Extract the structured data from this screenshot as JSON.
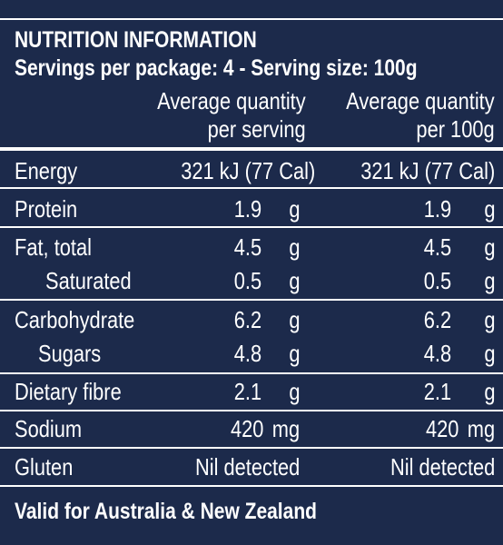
{
  "header": {
    "title": "NUTRITION INFORMATION",
    "subtitle": "Servings per package: 4 - Serving size: 100g"
  },
  "columns": [
    {
      "line1": "Average quantity",
      "line2": "per serving"
    },
    {
      "line1": "Average quantity",
      "line2": "per 100g"
    }
  ],
  "rows": [
    {
      "label": "Energy",
      "serving": "321 kJ (77 Cal)",
      "per100": "321 kJ (77 Cal)"
    },
    {
      "label": "Protein",
      "serving": "1.9",
      "serving_unit": "g",
      "per100": "1.9",
      "per100_unit": "g"
    },
    {
      "label": "Fat, total",
      "serving": "4.5",
      "serving_unit": "g",
      "per100": "4.5",
      "per100_unit": "g"
    },
    {
      "label": "Saturated",
      "serving": "0.5",
      "serving_unit": "g",
      "per100": "0.5",
      "per100_unit": "g"
    },
    {
      "label": "Carbohydrate",
      "serving": "6.2",
      "serving_unit": "g",
      "per100": "6.2",
      "per100_unit": "g"
    },
    {
      "label": "Sugars",
      "serving": "4.8",
      "serving_unit": "g",
      "per100": "4.8",
      "per100_unit": "g"
    },
    {
      "label": "Dietary fibre",
      "serving": "2.1",
      "serving_unit": "g",
      "per100": "2.1",
      "per100_unit": "g"
    },
    {
      "label": "Sodium",
      "serving": "420",
      "serving_unit": "mg",
      "per100": "420",
      "per100_unit": "mg"
    },
    {
      "label": "Gluten",
      "serving": "Nil detected",
      "per100": "Nil detected"
    }
  ],
  "footer": "Valid for Australia & New Zealand"
}
